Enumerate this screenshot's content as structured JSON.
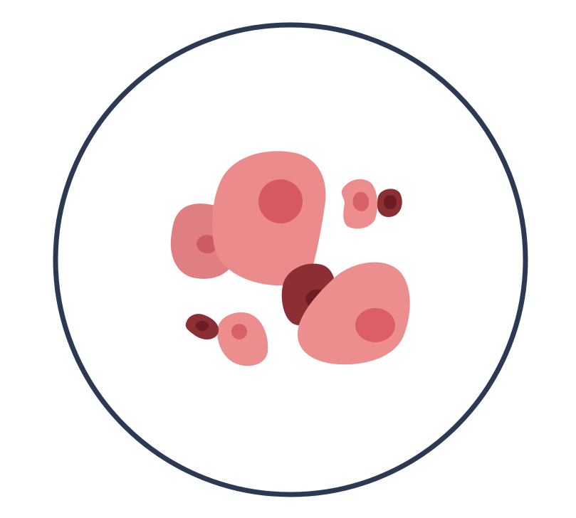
{
  "illustration": {
    "subject": "cells-in-circle-icon",
    "colors": {
      "background": "#ffffff",
      "frame": "#2b3a52",
      "cell_light": "#e98a8a",
      "cell_medium": "#dd6b72",
      "nucleus": "#d65a62",
      "cell_dark": "#8b2f35",
      "nucleus_dark": "#6e1f25"
    }
  }
}
